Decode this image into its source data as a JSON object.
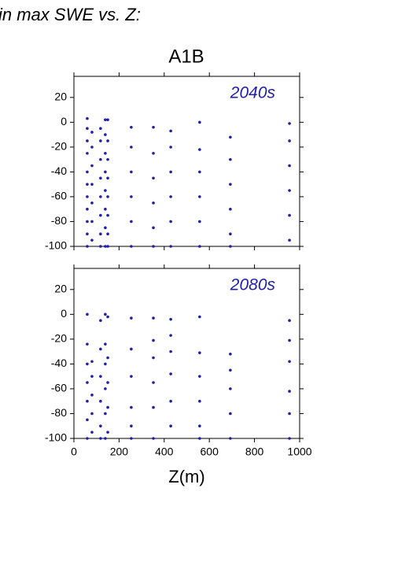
{
  "heading": "in max SWE vs. Z:",
  "scenario": "A1B",
  "chart_data": [
    {
      "type": "scatter",
      "annotation": "2040s",
      "color": "#2020a8",
      "x": [
        59,
        59,
        59,
        59,
        59,
        59,
        59,
        59,
        59,
        59,
        59,
        80,
        80,
        80,
        80,
        80,
        80,
        80,
        118,
        118,
        118,
        118,
        118,
        118,
        118,
        118,
        139,
        139,
        139,
        139,
        139,
        139,
        139,
        139,
        150,
        150,
        150,
        150,
        150,
        150,
        150,
        150,
        254,
        254,
        254,
        254,
        254,
        254,
        352,
        352,
        352,
        352,
        352,
        352,
        429,
        429,
        429,
        429,
        429,
        429,
        557,
        557,
        557,
        557,
        557,
        557,
        693,
        693,
        693,
        693,
        693,
        693,
        955,
        955,
        955,
        955,
        955,
        955
      ],
      "values": [
        3,
        -5,
        -15,
        -25,
        -40,
        -50,
        -60,
        -70,
        -80,
        -90,
        -100,
        -8,
        -20,
        -35,
        -50,
        -65,
        -80,
        -95,
        -5,
        -15,
        -30,
        -45,
        -60,
        -75,
        -90,
        -100,
        2,
        -10,
        -25,
        -40,
        -55,
        -70,
        -85,
        -100,
        2,
        -15,
        -30,
        -45,
        -60,
        -75,
        -90,
        -100,
        -4,
        -20,
        -40,
        -60,
        -80,
        -100,
        -4,
        -25,
        -45,
        -65,
        -85,
        -100,
        -7,
        -20,
        -40,
        -60,
        -80,
        -100,
        0,
        -22,
        -40,
        -60,
        -80,
        -100,
        -12,
        -30,
        -50,
        -70,
        -90,
        -100,
        -1,
        -15,
        -35,
        -55,
        -75,
        -95
      ],
      "xlim": [
        0,
        1000
      ],
      "ylim": [
        -100,
        37
      ],
      "yticks": [
        -100,
        -80,
        -60,
        -40,
        -20,
        0,
        20
      ]
    },
    {
      "type": "scatter",
      "annotation": "2080s",
      "color": "#2020a8",
      "xlabel": "Z(m)",
      "x": [
        59,
        59,
        59,
        59,
        59,
        59,
        59,
        80,
        80,
        80,
        80,
        80,
        118,
        118,
        118,
        118,
        118,
        118,
        139,
        139,
        139,
        139,
        139,
        139,
        150,
        150,
        150,
        150,
        150,
        254,
        254,
        254,
        254,
        254,
        254,
        352,
        352,
        352,
        352,
        352,
        352,
        429,
        429,
        429,
        429,
        429,
        429,
        557,
        557,
        557,
        557,
        557,
        557,
        693,
        693,
        693,
        693,
        693,
        955,
        955,
        955,
        955,
        955,
        955
      ],
      "values": [
        0,
        -24,
        -40,
        -55,
        -70,
        -85,
        -100,
        -38,
        -50,
        -65,
        -80,
        -95,
        -5,
        -28,
        -50,
        -70,
        -90,
        -100,
        0,
        -24,
        -40,
        -60,
        -80,
        -100,
        -2,
        -35,
        -55,
        -75,
        -95,
        -3,
        -28,
        -50,
        -75,
        -90,
        -100,
        -3,
        -21,
        -35,
        -55,
        -75,
        -100,
        -4,
        -17,
        -30,
        -48,
        -70,
        -90,
        -2,
        -31,
        -50,
        -70,
        -90,
        -100,
        -32,
        -45,
        -60,
        -80,
        -100,
        -5,
        -21,
        -38,
        -62,
        -80,
        -100
      ],
      "xlim": [
        0,
        1000
      ],
      "ylim": [
        -100,
        37
      ],
      "yticks": [
        -100,
        -80,
        -60,
        -40,
        -20,
        0,
        20
      ],
      "xticks": [
        0,
        200,
        400,
        600,
        800,
        1000
      ]
    }
  ]
}
